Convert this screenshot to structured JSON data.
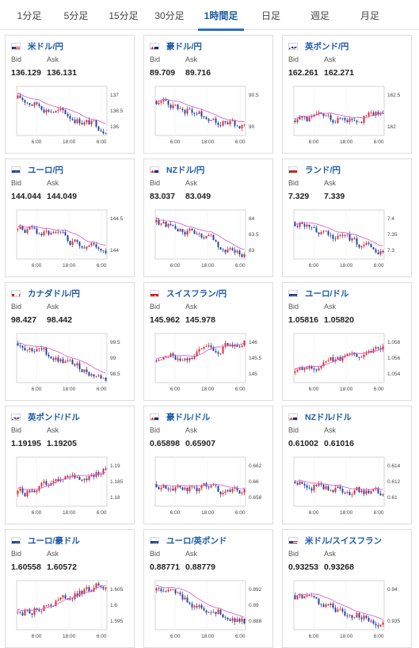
{
  "tabs": [
    "1分足",
    "5分足",
    "15分足",
    "30分足",
    "1時間足",
    "日足",
    "週足",
    "月足"
  ],
  "active_tab": 4,
  "labels": {
    "bid": "Bid",
    "ask": "Ask"
  },
  "colors": {
    "link": "#1a5aa8",
    "up": "#e0262b",
    "down": "#1f3fa8",
    "ma": "#d94fd0"
  },
  "cards": [
    {
      "pair": "米ドル/円",
      "flag": "us-flag-icon",
      "bid": "136.129",
      "ask": "136.131",
      "xticks": [
        "6:00",
        "18:00",
        "6:00"
      ],
      "yticks": [
        "137",
        "136.5",
        "136"
      ]
    },
    {
      "pair": "豪ドル/円",
      "flag": "au-flag-icon",
      "bid": "89.709",
      "ask": "89.716",
      "xticks": [
        "6:00",
        "18:00",
        "6:00"
      ],
      "yticks": [
        "90.5",
        "90"
      ]
    },
    {
      "pair": "英ポンド/円",
      "flag": "gb-flag-icon",
      "bid": "162.261",
      "ask": "162.271",
      "xticks": [
        "6:00",
        "18:00",
        "6:00"
      ],
      "yticks": [
        "162.5",
        "162"
      ]
    },
    {
      "pair": "ユーロ/円",
      "flag": "eu-flag-icon",
      "bid": "144.044",
      "ask": "144.049",
      "xticks": [
        "6:00",
        "18:00",
        "6:00"
      ],
      "yticks": [
        "144.5",
        "144"
      ]
    },
    {
      "pair": "NZドル/円",
      "flag": "nz-flag-icon",
      "bid": "83.037",
      "ask": "83.049",
      "xticks": [
        "6:00",
        "18:00",
        "6:00"
      ],
      "yticks": [
        "84",
        "83.5",
        "83"
      ]
    },
    {
      "pair": "ランド/円",
      "flag": "za-flag-icon",
      "bid": "7.329",
      "ask": "7.339",
      "xticks": [
        "6:00",
        "18:00",
        "6:00"
      ],
      "yticks": [
        "7.4",
        "7.35",
        "7.3"
      ]
    },
    {
      "pair": "カナダドル/円",
      "flag": "ca-flag-icon",
      "bid": "98.427",
      "ask": "98.442",
      "xticks": [
        "6:00",
        "18:00",
        "6:00"
      ],
      "yticks": [
        "99.5",
        "99",
        "98.5"
      ]
    },
    {
      "pair": "スイスフラン/円",
      "flag": "ch-flag-icon",
      "bid": "145.962",
      "ask": "145.978",
      "xticks": [
        "6:00",
        "18:00",
        "6:00"
      ],
      "yticks": [
        "146",
        "145.5",
        "145"
      ]
    },
    {
      "pair": "ユーロ/ドル",
      "flag": "eu-flag-icon",
      "bid": "1.05816",
      "ask": "1.05820",
      "xticks": [
        "6:00",
        "18:00",
        "6:00"
      ],
      "yticks": [
        "1.058",
        "1.056",
        "1.054"
      ]
    },
    {
      "pair": "英ポンド/ドル",
      "flag": "gb-flag-icon",
      "bid": "1.19195",
      "ask": "1.19205",
      "xticks": [
        "6:00",
        "18:00",
        "6:00"
      ],
      "yticks": [
        "1.19",
        "1.185",
        "1.18"
      ]
    },
    {
      "pair": "豪ドル/ドル",
      "flag": "au-flag-icon",
      "bid": "0.65898",
      "ask": "0.65907",
      "xticks": [
        "6:00",
        "18:00",
        "6:00"
      ],
      "yticks": [
        "0.662",
        "0.66",
        "0.658"
      ]
    },
    {
      "pair": "NZドル/ドル",
      "flag": "nz-flag-icon",
      "bid": "0.61002",
      "ask": "0.61016",
      "xticks": [
        "6:00",
        "18:00",
        "6:00"
      ],
      "yticks": [
        "0.614",
        "0.612",
        "0.61"
      ]
    },
    {
      "pair": "ユーロ/豪ドル",
      "flag": "eu-flag-icon",
      "bid": "1.60558",
      "ask": "1.60572",
      "xticks": [
        "6:00",
        "18:00",
        "6:00"
      ],
      "yticks": [
        "1.605",
        "1.6",
        "1.595"
      ]
    },
    {
      "pair": "ユーロ/英ポンド",
      "flag": "eu-flag-icon",
      "bid": "0.88771",
      "ask": "0.88779",
      "xticks": [
        "6:00",
        "18:00",
        "6:00"
      ],
      "yticks": [
        "0.892",
        "0.89",
        "0.888"
      ]
    },
    {
      "pair": "米ドル/スイスフラン",
      "flag": "us-flag-icon",
      "bid": "0.93253",
      "ask": "0.93268",
      "xticks": [
        "6:00",
        "18:00",
        "6:00"
      ],
      "yticks": [
        "0.94",
        "0.935"
      ]
    }
  ]
}
